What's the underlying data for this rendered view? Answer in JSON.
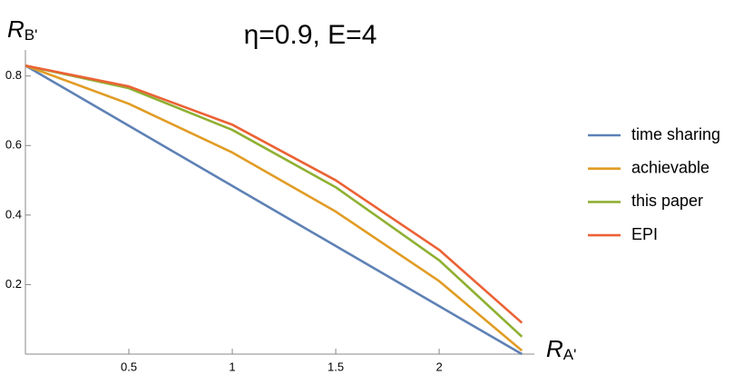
{
  "chart_data": {
    "type": "line",
    "title": "η=0.9, E=4",
    "x_label": {
      "main": "R",
      "sub": "A'"
    },
    "y_label": {
      "main": "R",
      "sub": "B'"
    },
    "x": [
      0,
      0.5,
      1.0,
      1.5,
      2.0,
      2.4
    ],
    "series": [
      {
        "name": "time sharing",
        "color": "#5e81b5",
        "values": [
          0.83,
          0.657,
          0.484,
          0.311,
          0.138,
          0.0
        ]
      },
      {
        "name": "achievable",
        "color": "#e19c24",
        "values": [
          0.83,
          0.72,
          0.58,
          0.41,
          0.21,
          0.01
        ]
      },
      {
        "name": "this paper",
        "color": "#8fb032",
        "values": [
          0.83,
          0.765,
          0.645,
          0.48,
          0.27,
          0.05
        ]
      },
      {
        "name": "EPI",
        "color": "#eb6235",
        "values": [
          0.83,
          0.77,
          0.66,
          0.5,
          0.3,
          0.09
        ]
      }
    ],
    "xlim": [
      0,
      2.46
    ],
    "ylim": [
      0,
      0.875
    ],
    "xticks": [
      0.5,
      1.0,
      1.5,
      2.0
    ],
    "yticks": [
      0.2,
      0.4,
      0.6,
      0.8
    ]
  }
}
